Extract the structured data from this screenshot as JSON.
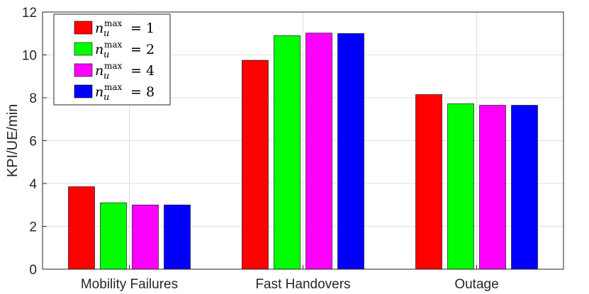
{
  "chart_data": {
    "type": "bar",
    "categories": [
      "Mobility Failures",
      "Fast Handovers",
      "Outage"
    ],
    "series": [
      {
        "name": "n_u^max = 1",
        "value_label": "1",
        "color": "#ff0000",
        "values": [
          3.85,
          9.75,
          8.15
        ]
      },
      {
        "name": "n_u^max = 2",
        "value_label": "2",
        "color": "#00ff00",
        "values": [
          3.1,
          10.9,
          7.72
        ]
      },
      {
        "name": "n_u^max = 4",
        "value_label": "4",
        "color": "#ff00ff",
        "values": [
          3.0,
          11.02,
          7.65
        ]
      },
      {
        "name": "n_u^max = 8",
        "value_label": "8",
        "color": "#0000ff",
        "values": [
          3.0,
          11.0,
          7.65
        ]
      }
    ],
    "ylabel": "KPI/UE/min",
    "xlabel": "",
    "title": "",
    "ylim": [
      0,
      12
    ],
    "yticks": [
      0,
      2,
      4,
      6,
      8,
      10,
      12
    ],
    "grid": true,
    "legend_placement": "top-left"
  }
}
